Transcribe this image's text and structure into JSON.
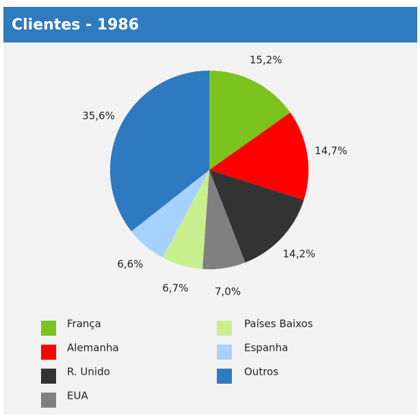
{
  "chart_data": {
    "type": "pie",
    "title": "Clientes - 1986",
    "categories": [
      "França",
      "Alemanha",
      "R. Unido",
      "EUA",
      "Países Baixos",
      "Espanha",
      "Outros"
    ],
    "values": [
      15.2,
      14.7,
      14.2,
      7.0,
      6.7,
      6.6,
      35.6
    ],
    "value_labels": [
      "15,2%",
      "14,7%",
      "14,2%",
      "7,0%",
      "6,7%",
      "6,6%",
      "35,6%"
    ],
    "colors": [
      "#7dc31e",
      "#ff0000",
      "#333333",
      "#808080",
      "#c8ef8e",
      "#a6d2ff",
      "#2e79c0"
    ]
  }
}
